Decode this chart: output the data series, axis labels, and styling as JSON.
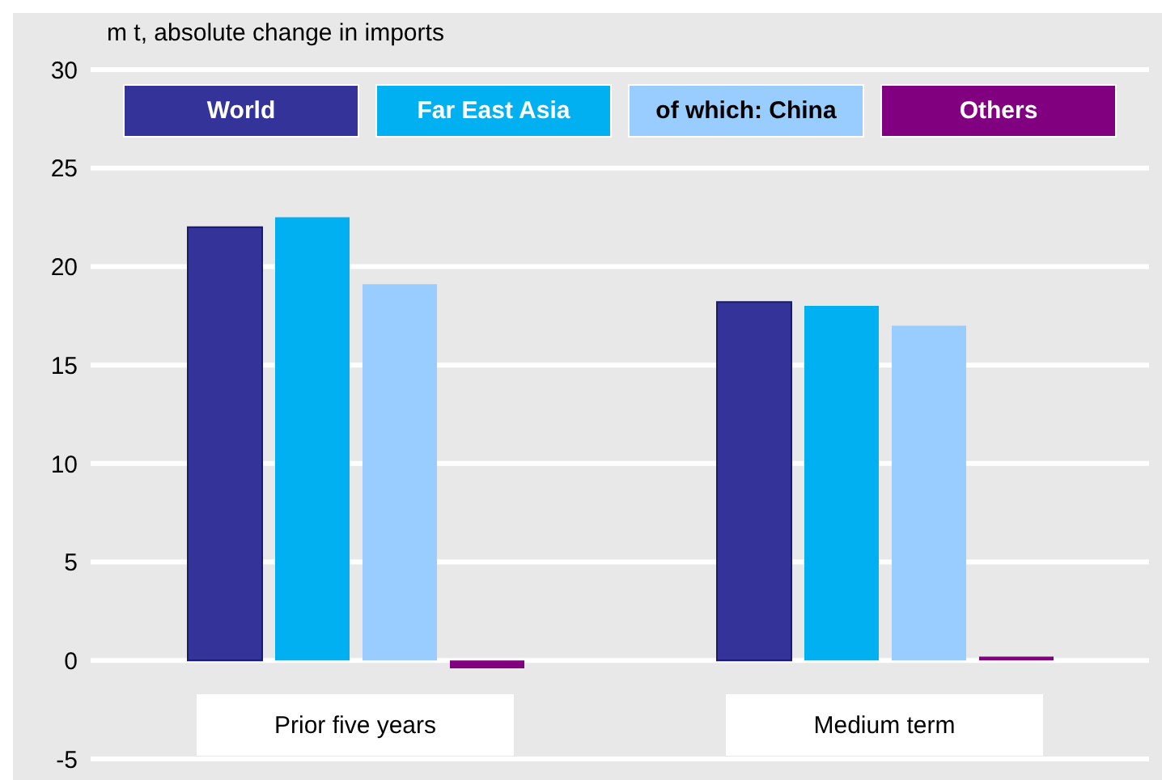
{
  "chart_data": {
    "type": "bar",
    "ylabel": "m t, absolute change in imports",
    "categories": [
      "Prior five years",
      "Medium term"
    ],
    "series": [
      {
        "name": "World",
        "color": "#333399",
        "values": [
          22.0,
          18.2
        ]
      },
      {
        "name": "Far East Asia",
        "color": "#00b0f0",
        "values": [
          22.5,
          18.0
        ]
      },
      {
        "name": "of which: China",
        "color": "#99ccff",
        "values": [
          19.1,
          17.0
        ]
      },
      {
        "name": "Others",
        "color": "#800080",
        "values": [
          -0.4,
          0.2
        ]
      }
    ],
    "ylim": [
      -5,
      30
    ],
    "yticks": [
      -5,
      0,
      5,
      10,
      15,
      20,
      25,
      30
    ],
    "grid": "y",
    "legend": "top"
  }
}
